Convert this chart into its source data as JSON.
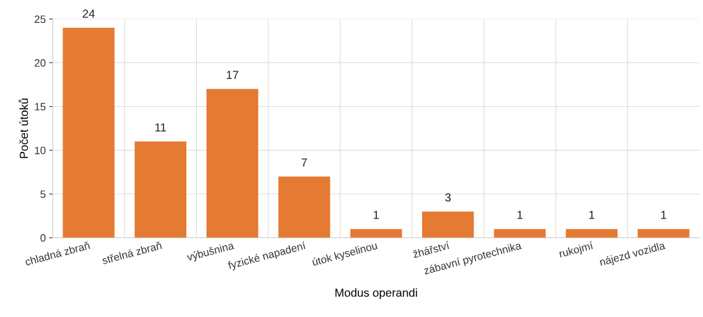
{
  "chart_data": {
    "type": "bar",
    "xlabel": "Modus operandi",
    "ylabel": "Počet útoků",
    "categories": [
      "chladná zbraň",
      "střelná zbraň",
      "výbušnina",
      "fyzické napadení",
      "útok kyselinou",
      "žhářství",
      "zábavní pyrotechnika",
      "rukojmí",
      "nájezd vozidla"
    ],
    "values": [
      24,
      11,
      17,
      7,
      1,
      3,
      1,
      1,
      1
    ],
    "color": "#e57a33",
    "ylim": [
      0,
      25
    ],
    "yticks": [
      0,
      5,
      10,
      15,
      20,
      25
    ],
    "grid": true,
    "data_labels": true
  }
}
